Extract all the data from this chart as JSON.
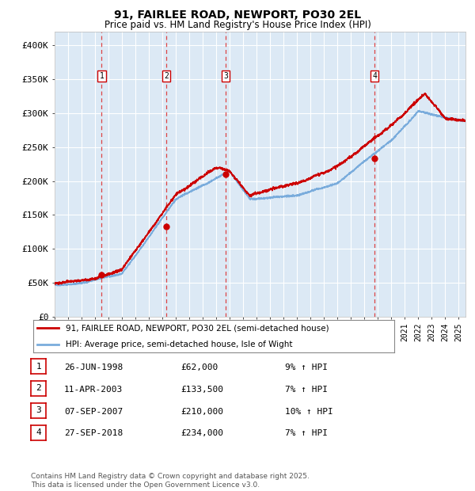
{
  "title": "91, FAIRLEE ROAD, NEWPORT, PO30 2EL",
  "subtitle": "Price paid vs. HM Land Registry's House Price Index (HPI)",
  "background_color": "#ffffff",
  "plot_bg_color": "#dce9f5",
  "grid_color": "#ffffff",
  "ylim": [
    0,
    420000
  ],
  "yticks": [
    0,
    50000,
    100000,
    150000,
    200000,
    250000,
    300000,
    350000,
    400000
  ],
  "ytick_labels": [
    "£0",
    "£50K",
    "£100K",
    "£150K",
    "£200K",
    "£250K",
    "£300K",
    "£350K",
    "£400K"
  ],
  "sale_info": [
    [
      "1",
      "26-JUN-1998",
      "£62,000",
      "9% ↑ HPI"
    ],
    [
      "2",
      "11-APR-2003",
      "£133,500",
      "7% ↑ HPI"
    ],
    [
      "3",
      "07-SEP-2007",
      "£210,000",
      "10% ↑ HPI"
    ],
    [
      "4",
      "27-SEP-2018",
      "£234,000",
      "7% ↑ HPI"
    ]
  ],
  "sale_date_years": [
    1998.49,
    2003.28,
    2007.69,
    2018.74
  ],
  "sale_prices": [
    62000,
    133500,
    210000,
    234000
  ],
  "legend_line1": "91, FAIRLEE ROAD, NEWPORT, PO30 2EL (semi-detached house)",
  "legend_line2": "HPI: Average price, semi-detached house, Isle of Wight",
  "footer": "Contains HM Land Registry data © Crown copyright and database right 2025.\nThis data is licensed under the Open Government Licence v3.0.",
  "hpi_color": "#7aacdc",
  "price_color": "#cc0000",
  "vline_color": "#dd3333",
  "xstart": 1995.0,
  "xend": 2025.5
}
